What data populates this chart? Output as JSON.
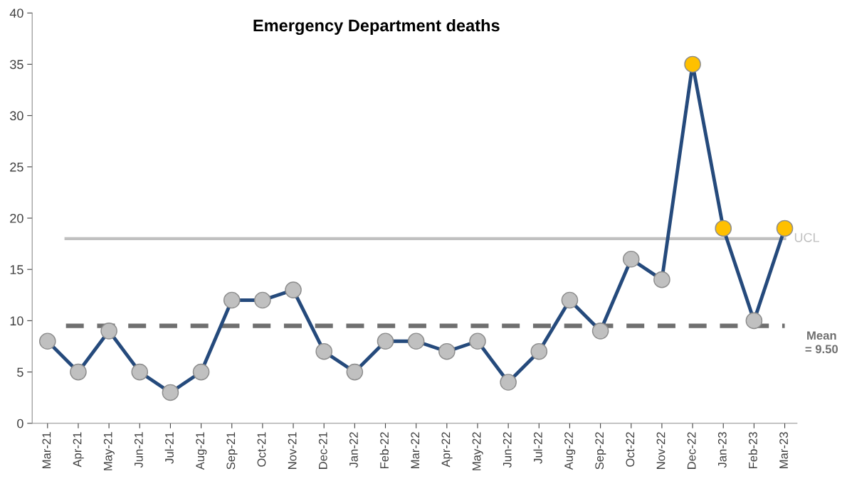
{
  "chart_data": {
    "type": "line",
    "title": "Emergency Department deaths",
    "categories": [
      "Mar-21",
      "Apr-21",
      "May-21",
      "Jun-21",
      "Jul-21",
      "Aug-21",
      "Sep-21",
      "Oct-21",
      "Nov-21",
      "Dec-21",
      "Jan-22",
      "Feb-22",
      "Mar-22",
      "Apr-22",
      "May-22",
      "Jun-22",
      "Jul-22",
      "Aug-22",
      "Sep-22",
      "Oct-22",
      "Nov-22",
      "Dec-22",
      "Jan-23",
      "Feb-23",
      "Mar-23"
    ],
    "series": [
      {
        "color": "#254a7c",
        "values": [
          8,
          5,
          9,
          5,
          3,
          5,
          12,
          12,
          13,
          7,
          5,
          8,
          8,
          7,
          8,
          4,
          7,
          12,
          9,
          16,
          14,
          35,
          19,
          10,
          19
        ],
        "colors": [
          "#c0c0c0",
          "#c0c0c0",
          "#c0c0c0",
          "#c0c0c0",
          "#c0c0c0",
          "#c0c0c0",
          "#c0c0c0",
          "#c0c0c0",
          "#c0c0c0",
          "#c0c0c0",
          "#c0c0c0",
          "#c0c0c0",
          "#c0c0c0",
          "#c0c0c0",
          "#c0c0c0",
          "#c0c0c0",
          "#c0c0c0",
          "#c0c0c0",
          "#c0c0c0",
          "#c0c0c0",
          "#c0c0c0",
          "#ffc000",
          "#ffc000",
          "#c0c0c0",
          "#ffc000"
        ]
      }
    ],
    "ylim": [
      0,
      40
    ],
    "yticks": [
      0,
      5,
      10,
      15,
      20,
      25,
      30,
      35,
      40
    ],
    "ref_lines": [
      {
        "axis": "y",
        "value": 18,
        "label": "UCL",
        "color": "#c0c0c0",
        "line_style": "solid"
      },
      {
        "axis": "y",
        "value": 9.5,
        "label": "Mean\n= 9.50",
        "color": "#6f6f6f",
        "line_style": "dashed"
      }
    ],
    "marker": "circle",
    "line_style": "solid",
    "grid": false
  }
}
